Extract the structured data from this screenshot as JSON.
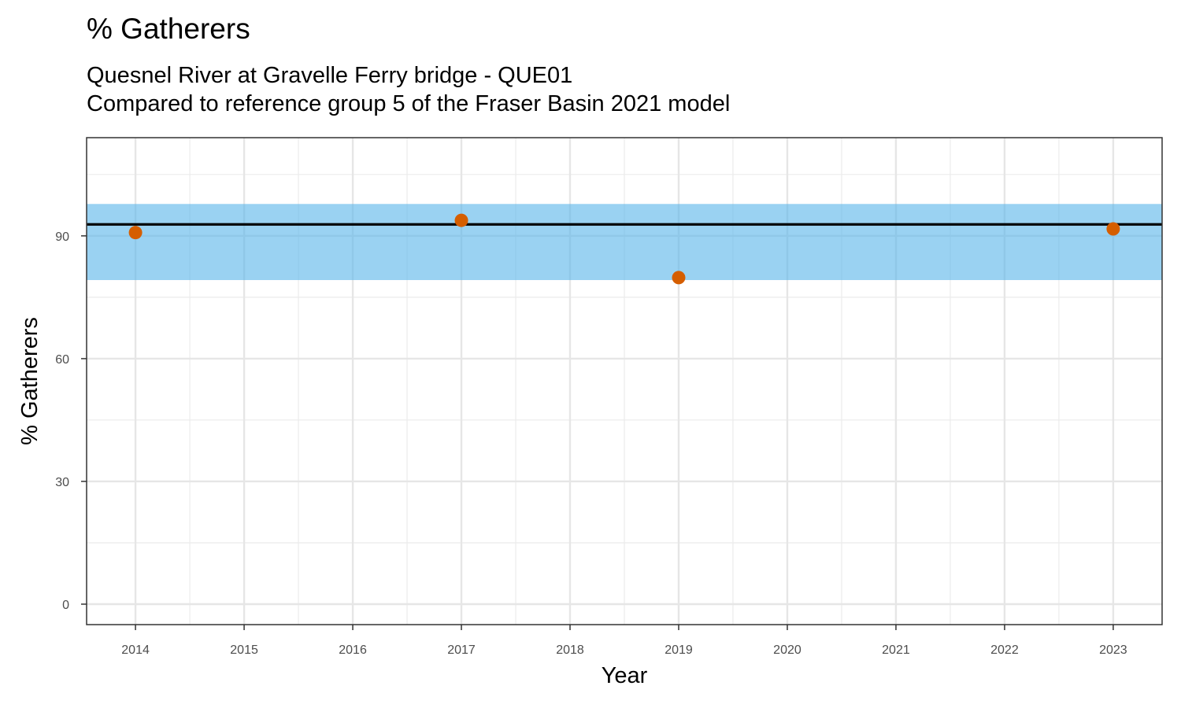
{
  "title": "% Gatherers",
  "subtitle_lines": [
    "Quesnel River at Gravelle Ferry bridge - QUE01",
    "Compared to reference group 5 of the Fraser Basin 2021 model"
  ],
  "chart_data": {
    "type": "scatter",
    "xlabel": "Year",
    "ylabel": "% Gatherers",
    "x_ticks": [
      2014,
      2015,
      2016,
      2017,
      2018,
      2019,
      2020,
      2021,
      2022,
      2023
    ],
    "y_ticks": [
      0,
      30,
      60,
      90
    ],
    "xlim": [
      2013.55,
      2023.45
    ],
    "ylim": [
      -5,
      114
    ],
    "grid": true,
    "points": [
      {
        "x": 2014,
        "y": 90.8
      },
      {
        "x": 2017,
        "y": 93.8
      },
      {
        "x": 2019,
        "y": 79.8
      },
      {
        "x": 2023,
        "y": 91.7
      }
    ],
    "reference_band": {
      "lower": 79.2,
      "upper": 97.8
    },
    "reference_line": 92.8,
    "colors": {
      "points": "#D55E00",
      "band": "#56B4E9",
      "reference_line": "#000000"
    }
  }
}
